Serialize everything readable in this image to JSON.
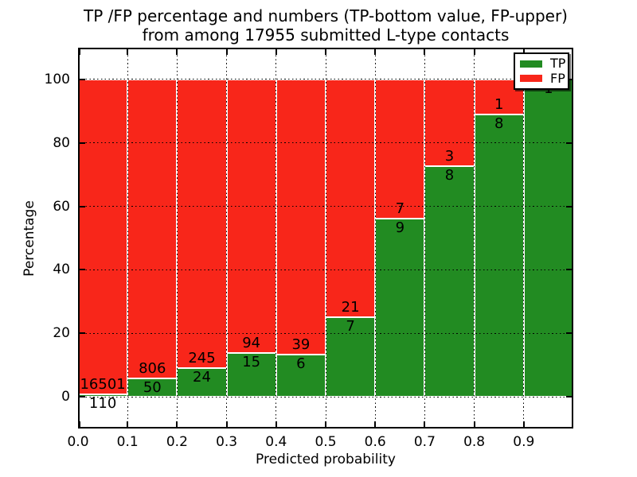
{
  "figure": {
    "title_line1": "TP /FP percentage and numbers (TP-bottom value, FP-upper)",
    "title_line2": "from among 17955 submitted L-type contacts"
  },
  "chart_data": {
    "type": "bar",
    "subtype": "stacked-100-percent",
    "title": "TP /FP percentage and numbers (TP-bottom value, FP-upper) from among 17955 submitted L-type contacts",
    "xlabel": "Predicted probability",
    "ylabel": "Percentage",
    "total_submitted_contacts": 17955,
    "bin_start": [
      0.0,
      0.1,
      0.2,
      0.3,
      0.4,
      0.5,
      0.6,
      0.7,
      0.8,
      0.9
    ],
    "bin_width": 0.1,
    "series": [
      {
        "name": "TP",
        "color": "#228B22",
        "values": [
          110,
          50,
          24,
          15,
          6,
          7,
          9,
          8,
          8,
          1
        ]
      },
      {
        "name": "FP",
        "color": "#F8261A",
        "values": [
          16501,
          806,
          245,
          94,
          39,
          21,
          7,
          3,
          1,
          0
        ]
      }
    ],
    "tp_percent_of_bin": [
      0.66,
      5.84,
      8.92,
      13.76,
      13.33,
      25.0,
      56.25,
      72.73,
      88.89,
      100.0
    ],
    "xlim": [
      0.0,
      1.0
    ],
    "ylim": [
      -10,
      110
    ],
    "xtick_labels": [
      "0.0",
      "0.1",
      "0.2",
      "0.3",
      "0.4",
      "0.5",
      "0.6",
      "0.7",
      "0.8",
      "0.9"
    ],
    "ytick_values": [
      0,
      20,
      40,
      60,
      80,
      100
    ],
    "grid": {
      "style": "dotted",
      "color": "#000000",
      "on": true
    },
    "legend": {
      "position": "upper right",
      "entries": [
        {
          "label": "TP",
          "color": "#228B22"
        },
        {
          "label": "FP",
          "color": "#F8261A"
        }
      ]
    }
  }
}
